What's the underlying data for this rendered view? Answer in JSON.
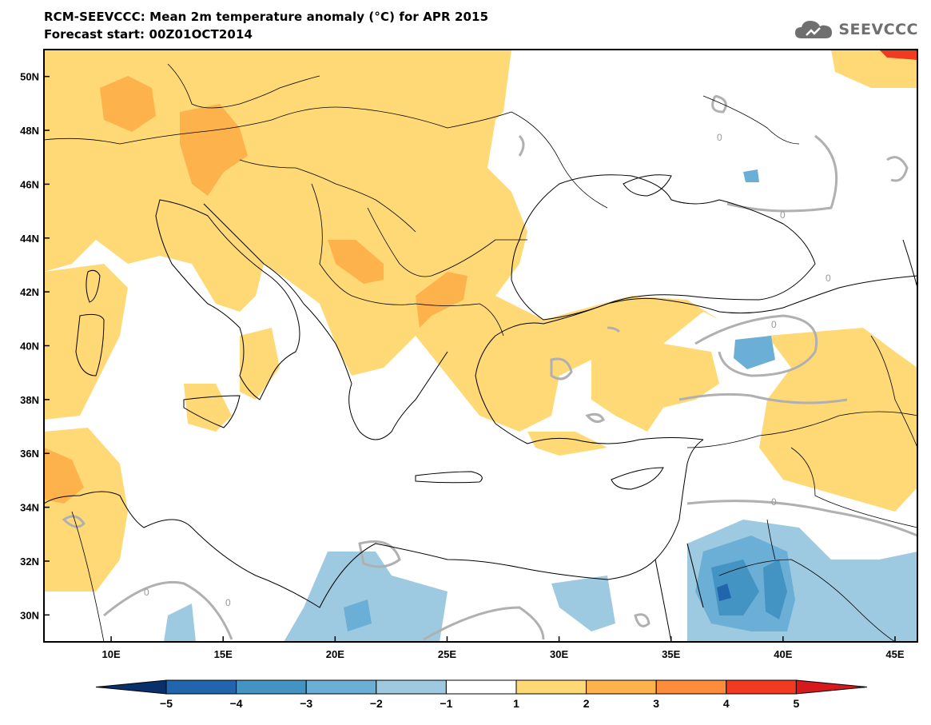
{
  "header": {
    "title_line1": "RCM-SEEVCCC: Mean 2m temperature anomaly (°C) for APR 2015",
    "title_line2": "Forecast start: 00Z01OCT2014",
    "logo_text": "SEEVCCC",
    "logo_color": "#6f6f6f"
  },
  "map": {
    "lon_range": [
      7,
      46
    ],
    "lat_range": [
      29,
      51
    ],
    "lon_ticks": [
      {
        "value": 10,
        "label": "10E"
      },
      {
        "value": 15,
        "label": "15E"
      },
      {
        "value": 20,
        "label": "20E"
      },
      {
        "value": 25,
        "label": "25E"
      },
      {
        "value": 30,
        "label": "30E"
      },
      {
        "value": 35,
        "label": "35E"
      },
      {
        "value": 40,
        "label": "40E"
      },
      {
        "value": 45,
        "label": "45E"
      }
    ],
    "lat_ticks": [
      {
        "value": 50,
        "label": "50N"
      },
      {
        "value": 48,
        "label": "48N"
      },
      {
        "value": 46,
        "label": "46N"
      },
      {
        "value": 44,
        "label": "44N"
      },
      {
        "value": 42,
        "label": "42N"
      },
      {
        "value": 40,
        "label": "40N"
      },
      {
        "value": 38,
        "label": "38N"
      },
      {
        "value": 36,
        "label": "36N"
      },
      {
        "value": 34,
        "label": "34N"
      },
      {
        "value": 32,
        "label": "32N"
      },
      {
        "value": 30,
        "label": "30N"
      }
    ],
    "contour_label": "0"
  },
  "colorbar": {
    "levels": [
      "−5",
      "−4",
      "−3",
      "−2",
      "−1",
      "1",
      "2",
      "3",
      "4",
      "5"
    ],
    "colors": [
      "#08306b",
      "#2166ac",
      "#4393c3",
      "#6baed6",
      "#9ecae1",
      "#ffffff",
      "#fed976",
      "#feb24c",
      "#fd8d3c",
      "#f03b20",
      "#d7191c"
    ]
  }
}
